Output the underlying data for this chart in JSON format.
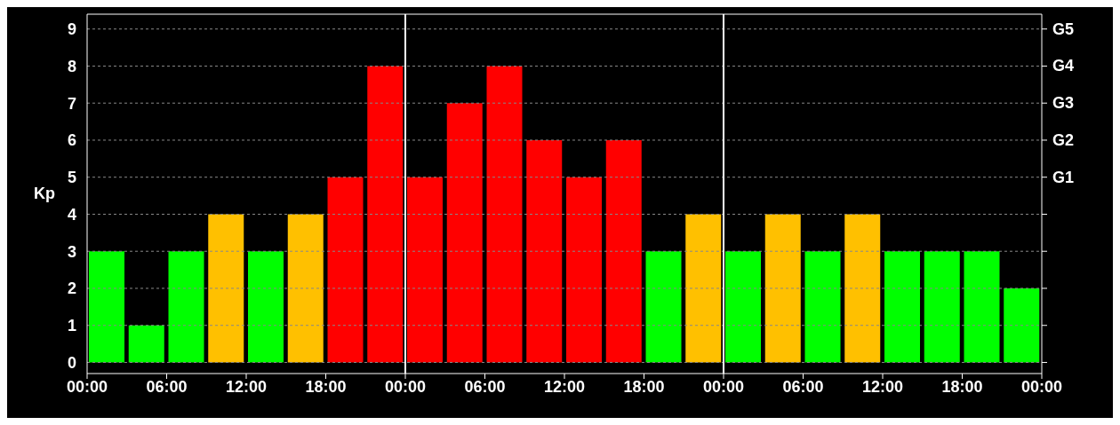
{
  "chart_data": {
    "type": "bar",
    "ylabel": "Kp",
    "x": [
      "--01-01T01:30",
      "--01-01T04:30",
      "--01-01T07:30",
      "--01-01T10:30",
      "--01-01T13:30",
      "--01-01T16:30",
      "--01-01T19:30",
      "--01-01T22:30",
      "--01-02T01:30",
      "--01-02T04:30",
      "--01-02T07:30",
      "--01-02T10:30",
      "--01-02T13:30",
      "--01-02T16:30",
      "--01-02T19:30",
      "--01-02T22:30",
      "--01-03T01:30",
      "--01-03T04:30",
      "--01-03T07:30",
      "--01-03T10:30",
      "--01-03T13:30",
      "--01-03T16:30",
      "--01-03T19:30",
      "--01-03T22:30"
    ],
    "values": [
      3,
      1,
      3,
      4,
      3,
      4,
      5,
      8,
      5,
      7,
      8,
      6,
      5,
      6,
      3,
      4,
      3,
      4,
      3,
      4,
      3,
      3,
      3,
      2
    ],
    "colors": [
      "#00ff00",
      "#00ff00",
      "#00ff00",
      "#ffc000",
      "#00ff00",
      "#ffc000",
      "#ff0000",
      "#ff0000",
      "#ff0000",
      "#ff0000",
      "#ff0000",
      "#ff0000",
      "#ff0000",
      "#ff0000",
      "#00ff00",
      "#ffc000",
      "#00ff00",
      "#ffc000",
      "#00ff00",
      "#ffc000",
      "#00ff00",
      "#00ff00",
      "#00ff00",
      "#00ff00"
    ],
    "xlim": [
      "--01-01T00:00",
      "--01-04T00:00"
    ],
    "xticks": [
      {
        "value": "--01-01T00:00",
        "label": "00:00"
      },
      {
        "value": "--01-01T06:00",
        "label": "06:00"
      },
      {
        "value": "--01-01T12:00",
        "label": "12:00"
      },
      {
        "value": "--01-01T18:00",
        "label": "18:00"
      },
      {
        "value": "--01-02T00:00",
        "label": "00:00"
      },
      {
        "value": "--01-02T06:00",
        "label": "06:00"
      },
      {
        "value": "--01-02T12:00",
        "label": "12:00"
      },
      {
        "value": "--01-02T18:00",
        "label": "18:00"
      },
      {
        "value": "--01-03T00:00",
        "label": "00:00"
      },
      {
        "value": "--01-03T06:00",
        "label": "06:00"
      },
      {
        "value": "--01-03T12:00",
        "label": "12:00"
      },
      {
        "value": "--01-03T18:00",
        "label": "18:00"
      },
      {
        "value": "--01-04T00:00",
        "label": "00:00"
      }
    ],
    "ylim": [
      -0.3,
      9.4
    ],
    "yticks": [
      0,
      1,
      2,
      3,
      4,
      5,
      6,
      7,
      8,
      9
    ],
    "grid": "y",
    "annotations": [
      "G1",
      "G2",
      "G3",
      "G4",
      "G5"
    ],
    "ref_lines": [
      {
        "axis": "x",
        "value": "--01-02T00:00",
        "color": "#ffffff"
      },
      {
        "axis": "x",
        "value": "--01-03T00:00",
        "color": "#ffffff"
      }
    ]
  }
}
